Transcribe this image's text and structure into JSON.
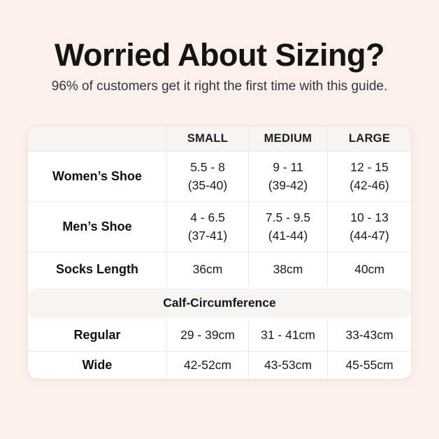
{
  "page": {
    "background": "#fcf0ea",
    "title": "Worried About Sizing?",
    "subtitle": "96% of customers get it right the first time with this guide.",
    "title_color": "#141414",
    "subtitle_color": "#2d3546",
    "header_band_color": "#f6f5f3",
    "grid_line_color": "#edebe8"
  },
  "table": {
    "header": {
      "col0": "",
      "col1": "SMALL",
      "col2": "MEDIUM",
      "col3": "LARGE"
    },
    "rows": [
      {
        "label": "Women’s Shoe",
        "small": [
          "5.5 - 8",
          "(35-40)"
        ],
        "medium": [
          "9 - 11",
          "(39-42)"
        ],
        "large": [
          "12 - 15",
          "(42-46)"
        ]
      },
      {
        "label": "Men’s Shoe",
        "small": [
          "4 - 6.5",
          "(37-41)"
        ],
        "medium": [
          "7.5 - 9.5",
          "(41-44)"
        ],
        "large": [
          "10 - 13",
          "(44-47)"
        ]
      },
      {
        "label": "Socks Length",
        "small": [
          "36cm"
        ],
        "medium": [
          "38cm"
        ],
        "large": [
          "40cm"
        ]
      }
    ],
    "section": {
      "header": "Calf-Circumference",
      "rows": [
        {
          "label": "Regular",
          "small": [
            "29 - 39cm"
          ],
          "medium": [
            "31 - 41cm"
          ],
          "large": [
            "33-43cm"
          ]
        },
        {
          "label": "Wide",
          "small": [
            "42-52cm"
          ],
          "medium": [
            "43-53cm"
          ],
          "large": [
            "45-55cm"
          ]
        }
      ]
    }
  },
  "chart_data": {
    "type": "table",
    "title": "Worried About Sizing?",
    "subtitle": "96% of customers get it right the first time with this guide.",
    "columns": [
      "",
      "SMALL",
      "MEDIUM",
      "LARGE"
    ],
    "rows": [
      [
        "Women’s Shoe",
        "5.5 - 8 (35-40)",
        "9 - 11 (39-42)",
        "12 - 15 (42-46)"
      ],
      [
        "Men’s Shoe",
        "4 - 6.5 (37-41)",
        "7.5 - 9.5 (41-44)",
        "10 - 13 (44-47)"
      ],
      [
        "Socks Length",
        "36cm",
        "38cm",
        "40cm"
      ],
      [
        "Calf-Circumference (section header, spans all columns)",
        "",
        "",
        ""
      ],
      [
        "Regular",
        "29 - 39cm",
        "31 - 41cm",
        "33-43cm"
      ],
      [
        "Wide",
        "42-52cm",
        "43-53cm",
        "45-55cm"
      ]
    ],
    "layout": {
      "header_fill": "#f6f5f3",
      "body_fill": "#ffffff",
      "page_fill": "#fcf0ea",
      "grid": true
    }
  }
}
